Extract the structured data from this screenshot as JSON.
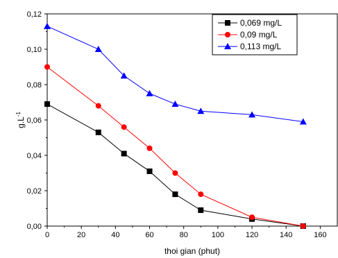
{
  "chart_data": {
    "type": "line",
    "xlabel": "thoi gian (phut)",
    "ylabel": "g.L",
    "ylabel_superscript": "-1",
    "xlim": [
      0,
      170
    ],
    "ylim": [
      0,
      0.12
    ],
    "x_ticks": [
      0,
      20,
      40,
      60,
      80,
      100,
      120,
      140,
      160
    ],
    "x_tick_labels": [
      "0",
      "20",
      "40",
      "60",
      "80",
      "100",
      "120",
      "140",
      "160"
    ],
    "y_ticks": [
      0,
      0.02,
      0.04,
      0.06,
      0.08,
      0.1,
      0.12
    ],
    "y_tick_labels": [
      "0,00",
      "0,02",
      "0,04",
      "0,06",
      "0,08",
      "0,10",
      "0,12"
    ],
    "grid": false,
    "legend_position": "top-right",
    "series": [
      {
        "name": "0,069 mg/L",
        "color": "#000000",
        "marker": "square",
        "x": [
          0,
          30,
          45,
          60,
          75,
          90,
          120,
          150
        ],
        "y": [
          0.069,
          0.053,
          0.041,
          0.031,
          0.018,
          0.009,
          0.004,
          0.0
        ]
      },
      {
        "name": "0,09 mg/L",
        "color": "#ff0000",
        "marker": "circle",
        "x": [
          0,
          30,
          45,
          60,
          75,
          90,
          120,
          150
        ],
        "y": [
          0.09,
          0.068,
          0.056,
          0.044,
          0.03,
          0.018,
          0.005,
          0.0
        ]
      },
      {
        "name": "0,113 mg/L",
        "color": "#0000ff",
        "marker": "triangle",
        "x": [
          0,
          30,
          45,
          60,
          75,
          90,
          120,
          150
        ],
        "y": [
          0.113,
          0.1,
          0.085,
          0.075,
          0.069,
          0.065,
          0.063,
          0.059
        ]
      }
    ]
  }
}
